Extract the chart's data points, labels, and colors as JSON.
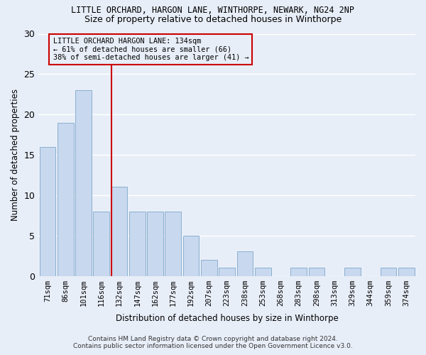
{
  "title": "LITTLE ORCHARD, HARGON LANE, WINTHORPE, NEWARK, NG24 2NP",
  "subtitle": "Size of property relative to detached houses in Winthorpe",
  "xlabel": "Distribution of detached houses by size in Winthorpe",
  "ylabel": "Number of detached properties",
  "categories": [
    "71sqm",
    "86sqm",
    "101sqm",
    "116sqm",
    "132sqm",
    "147sqm",
    "162sqm",
    "177sqm",
    "192sqm",
    "207sqm",
    "223sqm",
    "238sqm",
    "253sqm",
    "268sqm",
    "283sqm",
    "298sqm",
    "313sqm",
    "329sqm",
    "344sqm",
    "359sqm",
    "374sqm"
  ],
  "values": [
    16,
    19,
    23,
    8,
    11,
    8,
    8,
    8,
    5,
    2,
    1,
    3,
    1,
    0,
    1,
    1,
    0,
    1,
    0,
    1,
    1
  ],
  "highlight_index": 4,
  "highlight_color": "#cc0000",
  "bar_color": "#c8d8ee",
  "bar_edge_color": "#8ab0d0",
  "annotation_line1": "LITTLE ORCHARD HARGON LANE: 134sqm",
  "annotation_line2": "← 61% of detached houses are smaller (66)",
  "annotation_line3": "38% of semi-detached houses are larger (41) →",
  "footer1": "Contains HM Land Registry data © Crown copyright and database right 2024.",
  "footer2": "Contains public sector information licensed under the Open Government Licence v3.0.",
  "ylim": [
    0,
    30
  ],
  "yticks": [
    0,
    5,
    10,
    15,
    20,
    25,
    30
  ],
  "bg_color": "#e8eef8",
  "grid_color": "#ffffff"
}
